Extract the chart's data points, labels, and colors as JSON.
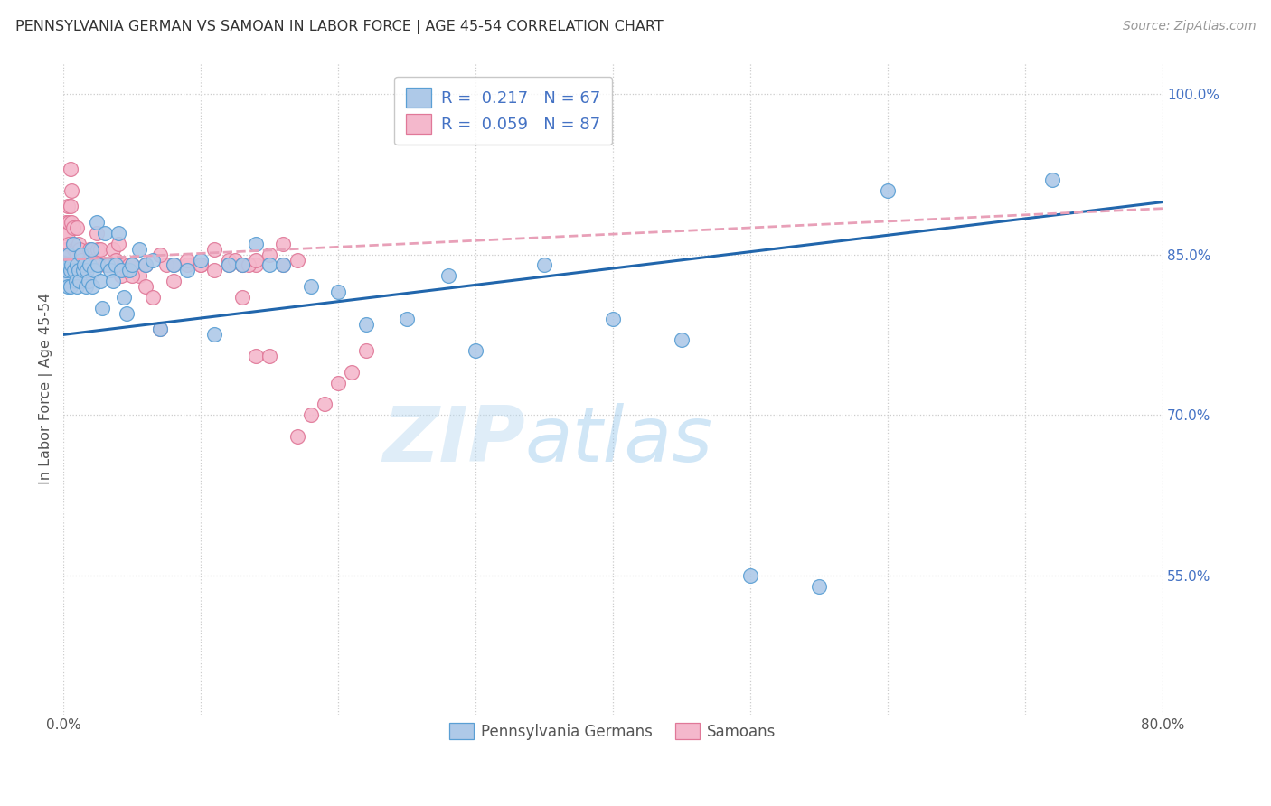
{
  "title": "PENNSYLVANIA GERMAN VS SAMOAN IN LABOR FORCE | AGE 45-54 CORRELATION CHART",
  "source": "Source: ZipAtlas.com",
  "ylabel": "In Labor Force | Age 45-54",
  "xlim": [
    0.0,
    0.8
  ],
  "ylim": [
    0.42,
    1.03
  ],
  "xtick_vals": [
    0.0,
    0.1,
    0.2,
    0.3,
    0.4,
    0.5,
    0.6,
    0.7,
    0.8
  ],
  "xticklabels": [
    "0.0%",
    "",
    "",
    "",
    "",
    "",
    "",
    "",
    "80.0%"
  ],
  "ytick_right_labels": [
    "100.0%",
    "85.0%",
    "70.0%",
    "55.0%"
  ],
  "ytick_right_values": [
    1.0,
    0.85,
    0.7,
    0.55
  ],
  "legend_blue_text": "R =  0.217   N = 67",
  "legend_pink_text": "R =  0.059   N = 87",
  "legend_bottom_labels": [
    "Pennsylvania Germans",
    "Samoans"
  ],
  "blue_color": "#aec9e8",
  "pink_color": "#f4b8cc",
  "blue_edge_color": "#5a9fd4",
  "pink_edge_color": "#e07898",
  "blue_line_color": "#2166ac",
  "pink_line_color": "#e8a0b8",
  "watermark": "ZIPatlas",
  "blue_line_intercept": 0.775,
  "blue_line_slope": 0.155,
  "pink_line_intercept": 0.845,
  "pink_line_slope": 0.06,
  "blue_points_x": [
    0.001,
    0.001,
    0.002,
    0.003,
    0.003,
    0.004,
    0.005,
    0.005,
    0.006,
    0.007,
    0.008,
    0.009,
    0.01,
    0.01,
    0.011,
    0.012,
    0.013,
    0.014,
    0.015,
    0.016,
    0.017,
    0.018,
    0.019,
    0.02,
    0.021,
    0.022,
    0.024,
    0.025,
    0.027,
    0.028,
    0.03,
    0.032,
    0.034,
    0.036,
    0.038,
    0.04,
    0.042,
    0.044,
    0.046,
    0.048,
    0.05,
    0.055,
    0.06,
    0.065,
    0.07,
    0.08,
    0.09,
    0.1,
    0.11,
    0.12,
    0.13,
    0.14,
    0.15,
    0.16,
    0.18,
    0.2,
    0.22,
    0.25,
    0.28,
    0.3,
    0.35,
    0.4,
    0.45,
    0.5,
    0.55,
    0.6,
    0.72
  ],
  "blue_points_y": [
    0.825,
    0.84,
    0.835,
    0.84,
    0.82,
    0.85,
    0.835,
    0.82,
    0.84,
    0.86,
    0.835,
    0.825,
    0.84,
    0.82,
    0.835,
    0.825,
    0.85,
    0.835,
    0.84,
    0.82,
    0.835,
    0.825,
    0.84,
    0.855,
    0.82,
    0.835,
    0.88,
    0.84,
    0.825,
    0.8,
    0.87,
    0.84,
    0.835,
    0.825,
    0.84,
    0.87,
    0.835,
    0.81,
    0.795,
    0.835,
    0.84,
    0.855,
    0.84,
    0.845,
    0.78,
    0.84,
    0.835,
    0.845,
    0.775,
    0.84,
    0.84,
    0.86,
    0.84,
    0.84,
    0.82,
    0.815,
    0.785,
    0.79,
    0.83,
    0.76,
    0.84,
    0.79,
    0.77,
    0.55,
    0.54,
    0.91,
    0.92
  ],
  "pink_points_x": [
    0.001,
    0.001,
    0.001,
    0.002,
    0.002,
    0.002,
    0.002,
    0.003,
    0.003,
    0.003,
    0.003,
    0.004,
    0.004,
    0.005,
    0.005,
    0.006,
    0.006,
    0.007,
    0.007,
    0.008,
    0.008,
    0.009,
    0.01,
    0.01,
    0.011,
    0.012,
    0.012,
    0.013,
    0.014,
    0.015,
    0.016,
    0.017,
    0.018,
    0.019,
    0.02,
    0.022,
    0.024,
    0.025,
    0.027,
    0.03,
    0.032,
    0.034,
    0.036,
    0.038,
    0.04,
    0.042,
    0.044,
    0.046,
    0.048,
    0.05,
    0.055,
    0.06,
    0.065,
    0.07,
    0.075,
    0.08,
    0.09,
    0.1,
    0.11,
    0.12,
    0.13,
    0.14,
    0.15,
    0.16,
    0.17,
    0.18,
    0.19,
    0.2,
    0.21,
    0.22,
    0.13,
    0.14,
    0.15,
    0.16,
    0.17,
    0.05,
    0.06,
    0.07,
    0.08,
    0.09,
    0.1,
    0.11,
    0.12,
    0.125,
    0.13,
    0.135,
    0.14
  ],
  "pink_points_y": [
    0.855,
    0.87,
    0.835,
    0.88,
    0.87,
    0.855,
    0.84,
    0.895,
    0.87,
    0.855,
    0.84,
    0.88,
    0.86,
    0.93,
    0.895,
    0.91,
    0.88,
    0.875,
    0.86,
    0.855,
    0.84,
    0.855,
    0.875,
    0.85,
    0.86,
    0.855,
    0.84,
    0.845,
    0.835,
    0.825,
    0.84,
    0.84,
    0.845,
    0.855,
    0.85,
    0.845,
    0.87,
    0.855,
    0.855,
    0.84,
    0.84,
    0.84,
    0.855,
    0.845,
    0.86,
    0.83,
    0.84,
    0.835,
    0.84,
    0.84,
    0.83,
    0.82,
    0.81,
    0.78,
    0.84,
    0.825,
    0.84,
    0.84,
    0.855,
    0.845,
    0.81,
    0.755,
    0.755,
    0.86,
    0.68,
    0.7,
    0.71,
    0.73,
    0.74,
    0.76,
    0.84,
    0.84,
    0.85,
    0.84,
    0.845,
    0.83,
    0.84,
    0.85,
    0.84,
    0.845,
    0.84,
    0.835,
    0.84,
    0.845,
    0.84,
    0.84,
    0.845
  ]
}
